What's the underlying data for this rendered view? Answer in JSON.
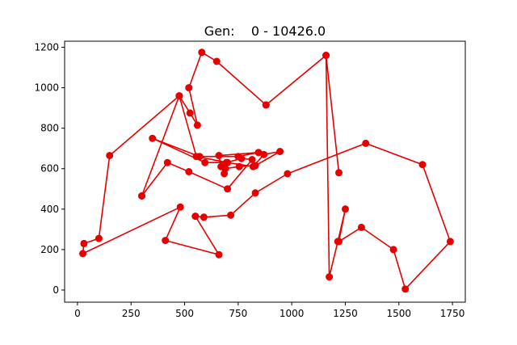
{
  "chart_data": {
    "type": "line",
    "title": "Gen:    0 - 10426.0",
    "xlabel": "",
    "ylabel": "",
    "xlim": [
      -60,
      1810
    ],
    "ylim": [
      -60,
      1230
    ],
    "xticks": [
      0,
      250,
      500,
      750,
      1000,
      1250,
      1500,
      1750
    ],
    "yticks": [
      0,
      200,
      400,
      600,
      800,
      1000,
      1200
    ],
    "grid": false,
    "legend": "none",
    "series": [
      {
        "color": "#e60000",
        "marker": "circle",
        "x": [
          880,
          650,
          580,
          520,
          560,
          525,
          475,
          150,
          100,
          30,
          25,
          480,
          410,
          660,
          550,
          590,
          715,
          830,
          980,
          1345,
          1610,
          1740,
          1530,
          1475,
          1325,
          1220,
          1250,
          1215,
          1175,
          1160,
          1220,
          1160,
          880
        ],
        "y": [
          915,
          1130,
          1175,
          1000,
          815,
          875,
          960,
          665,
          255,
          230,
          180,
          410,
          245,
          175,
          365,
          360,
          370,
          480,
          575,
          725,
          620,
          240,
          5,
          200,
          310,
          240,
          400,
          240,
          65,
          1160,
          580,
          1160,
          915
        ]
      },
      {
        "color": "#e60000",
        "marker": "circle",
        "x": [
          300,
          475,
          555,
          700,
          820,
          870,
          945,
          830,
          755,
          690,
          685,
          670,
          660,
          845,
          750,
          570,
          350,
          595,
          695,
          765,
          815,
          700,
          520,
          420,
          300
        ],
        "y": [
          465,
          960,
          660,
          630,
          610,
          670,
          685,
          615,
          610,
          600,
          575,
          610,
          665,
          680,
          660,
          660,
          750,
          630,
          630,
          650,
          645,
          500,
          585,
          630,
          465
        ]
      }
    ]
  }
}
